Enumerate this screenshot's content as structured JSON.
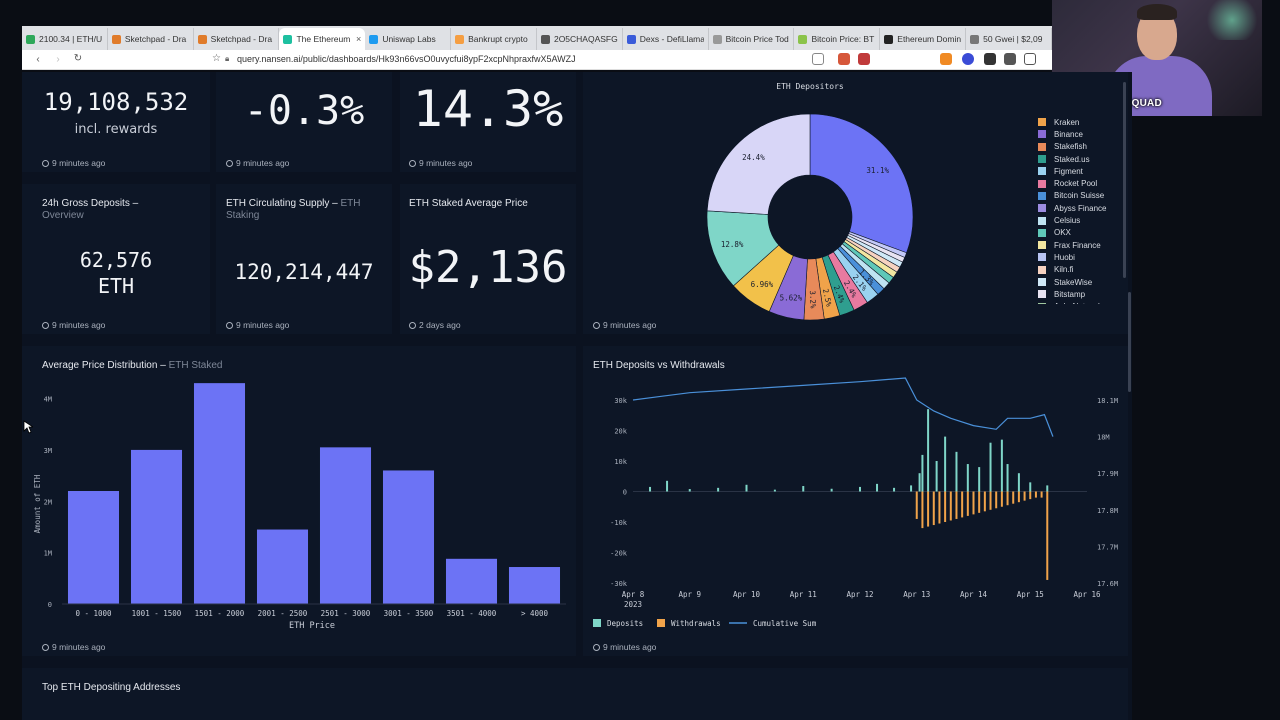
{
  "browser": {
    "tabs": [
      {
        "label": "2100.34 | ETH/U",
        "color": "#2ea85a"
      },
      {
        "label": "Sketchpad - Dra",
        "color": "#e07b2a"
      },
      {
        "label": "Sketchpad - Dra",
        "color": "#e07b2a"
      },
      {
        "label": "The Ethereum",
        "color": "#1ec0a0",
        "active": true
      },
      {
        "label": "Uniswap Labs",
        "color": "#1d9bf0"
      },
      {
        "label": "Bankrupt crypto",
        "color": "#f59e42"
      },
      {
        "label": "2O5CHAQASFG",
        "color": "#555555"
      },
      {
        "label": "Dexs - DefiLlama",
        "color": "#3a5bd9"
      },
      {
        "label": "Bitcoin Price Tod",
        "color": "#999999"
      },
      {
        "label": "Bitcoin Price: BT",
        "color": "#8bc34a"
      },
      {
        "label": "Ethereum Domin",
        "color": "#222222"
      },
      {
        "label": "50 Gwei | $2,09",
        "color": "#777777"
      }
    ],
    "url": "query.nansen.ai/public/dashboards/Hk93n66vsO0uvycfui8ypF2xcpNhpraxfwX5AWZJ"
  },
  "overlay": {
    "brand": "THE WEALTH SQUAD"
  },
  "stats": {
    "total": {
      "value": "19,108,532",
      "sub": "incl. rewards",
      "ago": "9 minutes ago"
    },
    "change": {
      "value": "-0.3%",
      "ago": "9 minutes ago"
    },
    "share": {
      "value": "14.3%",
      "ago": "9 minutes ago"
    },
    "gross": {
      "title": "24h Gross Deposits",
      "subtitle": "Overview",
      "value": "62,576",
      "unit": "ETH",
      "ago": "9 minutes ago"
    },
    "supply": {
      "title": "ETH Circulating Supply",
      "subtitle": "ETH Staking",
      "value": "120,214,447",
      "ago": "9 minutes ago"
    },
    "avgprice": {
      "title": "ETH Staked Average Price",
      "value": "$2,136",
      "ago": "2 days ago"
    }
  },
  "pie": {
    "title": "ETH Depositors",
    "ago": "9 minutes ago",
    "legend": [
      {
        "name": "Kraken",
        "color": "#f0a34a"
      },
      {
        "name": "Binance",
        "color": "#8a6bd6"
      },
      {
        "name": "Stakefish",
        "color": "#e88a5a"
      },
      {
        "name": "Staked.us",
        "color": "#2f9e8f"
      },
      {
        "name": "Figment",
        "color": "#9ad2f0"
      },
      {
        "name": "Rocket Pool",
        "color": "#e87aa0"
      },
      {
        "name": "Bitcoin Suisse",
        "color": "#4a90d9"
      },
      {
        "name": "Abyss Finance",
        "color": "#9c8ce0"
      },
      {
        "name": "Celsius",
        "color": "#bfe3f2"
      },
      {
        "name": "OKX",
        "color": "#5fc8b8"
      },
      {
        "name": "Frax Finance",
        "color": "#f2e6a0"
      },
      {
        "name": "Huobi",
        "color": "#b8c4f2"
      },
      {
        "name": "Kiln.fi",
        "color": "#f6d2c0"
      },
      {
        "name": "StakeWise",
        "color": "#cfe8f7"
      },
      {
        "name": "Bitstamp",
        "color": "#e8e3f2"
      },
      {
        "name": "Ankr Network",
        "color": "#a0c8a0"
      }
    ]
  },
  "chart_data": [
    {
      "type": "pie",
      "title": "ETH Depositors",
      "slices": [
        {
          "label": "31.1%",
          "value": 31.1,
          "color": "#6c73f5"
        },
        {
          "label": "",
          "value": 0.8,
          "color": "#c3c8f7"
        },
        {
          "label": "",
          "value": 0.8,
          "color": "#e8e3f2"
        },
        {
          "label": "",
          "value": 0.9,
          "color": "#cfe8f7"
        },
        {
          "label": "",
          "value": 0.9,
          "color": "#f6d2c0"
        },
        {
          "label": "",
          "value": 1.0,
          "color": "#f2e6a0"
        },
        {
          "label": "",
          "value": 1.1,
          "color": "#5fc8b8"
        },
        {
          "label": "",
          "value": 1.2,
          "color": "#bfe3f2"
        },
        {
          "label": "1.3%",
          "value": 1.3,
          "color": "#4a90d9"
        },
        {
          "label": "2.1%",
          "value": 2.1,
          "color": "#9ad2f0"
        },
        {
          "label": "2.4%",
          "value": 2.4,
          "color": "#e87aa0"
        },
        {
          "label": "2.4%",
          "value": 2.4,
          "color": "#2f9e8f"
        },
        {
          "label": "2.5%",
          "value": 2.5,
          "color": "#f0a34a"
        },
        {
          "label": "3.2%",
          "value": 3.2,
          "color": "#e88a5a"
        },
        {
          "label": "5.62%",
          "value": 5.62,
          "color": "#8a6bd6"
        },
        {
          "label": "6.96%",
          "value": 6.96,
          "color": "#f2c14a"
        },
        {
          "label": "12.8%",
          "value": 12.8,
          "color": "#7fd6c8"
        },
        {
          "label": "24.4%",
          "value": 24.4,
          "color": "#d8d6f7"
        }
      ]
    },
    {
      "type": "bar",
      "title": "Average Price Distribution",
      "subtitle": "ETH Staked",
      "categories": [
        "0 - 1000",
        "1001 - 1500",
        "1501 - 2000",
        "2001 - 2500",
        "2501 - 3000",
        "3001 - 3500",
        "3501 - 4000",
        "> 4000"
      ],
      "values": [
        2.2,
        3.0,
        4.3,
        1.45,
        3.05,
        2.6,
        0.88,
        0.72
      ],
      "unit": "M",
      "xlabel": "ETH Price",
      "ylabel": "Amount of ETH",
      "yticks": [
        "0",
        "1M",
        "2M",
        "3M",
        "4M"
      ],
      "ylim": [
        0,
        4.4
      ],
      "color": "#6c73f5",
      "ago": "9 minutes ago"
    },
    {
      "type": "line",
      "title": "ETH Deposits vs Withdrawals",
      "xticks": [
        "Apr 8",
        "Apr 9",
        "Apr 10",
        "Apr 11",
        "Apr 12",
        "Apr 13",
        "Apr 14",
        "Apr 15",
        "Apr 16"
      ],
      "xsub": "2023",
      "yleft_ticks": [
        "30k",
        "20k",
        "10k",
        "0",
        "-10k",
        "-20k",
        "-30k"
      ],
      "yleft_lim": [
        -30000,
        30000
      ],
      "yright_ticks": [
        "18.1M",
        "18M",
        "17.9M",
        "17.8M",
        "17.7M",
        "17.6M"
      ],
      "yright_lim": [
        17.6,
        18.1
      ],
      "legend": [
        {
          "name": "Deposits",
          "color": "#7fd6c8"
        },
        {
          "name": "Withdrawals",
          "color": "#f0a34a"
        },
        {
          "name": "Cumulative Sum",
          "color": "#4a90d9"
        }
      ],
      "cumulative": [
        [
          0,
          18.1
        ],
        [
          0.5,
          18.11
        ],
        [
          1,
          18.12
        ],
        [
          2,
          18.13
        ],
        [
          3,
          18.14
        ],
        [
          4,
          18.15
        ],
        [
          4.8,
          18.16
        ],
        [
          5.0,
          18.1
        ],
        [
          5.3,
          18.07
        ],
        [
          5.6,
          18.05
        ],
        [
          6,
          18.03
        ],
        [
          6.4,
          18.02
        ],
        [
          6.6,
          18.05
        ],
        [
          7,
          18.05
        ],
        [
          7.25,
          18.06
        ],
        [
          7.4,
          18.0
        ]
      ],
      "deposits": [
        [
          0.3,
          1500
        ],
        [
          0.6,
          3500
        ],
        [
          1.0,
          800
        ],
        [
          1.5,
          1200
        ],
        [
          2.0,
          2200
        ],
        [
          2.5,
          600
        ],
        [
          3.0,
          1800
        ],
        [
          3.5,
          900
        ],
        [
          4.0,
          1500
        ],
        [
          4.3,
          2500
        ],
        [
          4.6,
          1200
        ],
        [
          4.9,
          2000
        ],
        [
          5.05,
          6000
        ],
        [
          5.1,
          12000
        ],
        [
          5.2,
          27000
        ],
        [
          5.35,
          10000
        ],
        [
          5.5,
          18000
        ],
        [
          5.7,
          13000
        ],
        [
          5.9,
          9000
        ],
        [
          6.1,
          8000
        ],
        [
          6.3,
          16000
        ],
        [
          6.5,
          17000
        ],
        [
          6.6,
          9000
        ],
        [
          6.8,
          6000
        ],
        [
          7.0,
          3000
        ],
        [
          7.3,
          2000
        ]
      ],
      "withdrawals": [
        [
          5.0,
          -9000
        ],
        [
          5.1,
          -12000
        ],
        [
          5.2,
          -11500
        ],
        [
          5.3,
          -11000
        ],
        [
          5.4,
          -10500
        ],
        [
          5.5,
          -10000
        ],
        [
          5.6,
          -9500
        ],
        [
          5.7,
          -9000
        ],
        [
          5.8,
          -8500
        ],
        [
          5.9,
          -8000
        ],
        [
          6.0,
          -7500
        ],
        [
          6.1,
          -7000
        ],
        [
          6.2,
          -6500
        ],
        [
          6.3,
          -6000
        ],
        [
          6.4,
          -5500
        ],
        [
          6.5,
          -5000
        ],
        [
          6.6,
          -4500
        ],
        [
          6.7,
          -4000
        ],
        [
          6.8,
          -3500
        ],
        [
          6.9,
          -3000
        ],
        [
          7.0,
          -2500
        ],
        [
          7.1,
          -2000
        ],
        [
          7.2,
          -2000
        ],
        [
          7.3,
          -29000
        ]
      ],
      "ago": "9 minutes ago"
    }
  ],
  "section": {
    "title": "Top ETH Depositing Addresses"
  }
}
